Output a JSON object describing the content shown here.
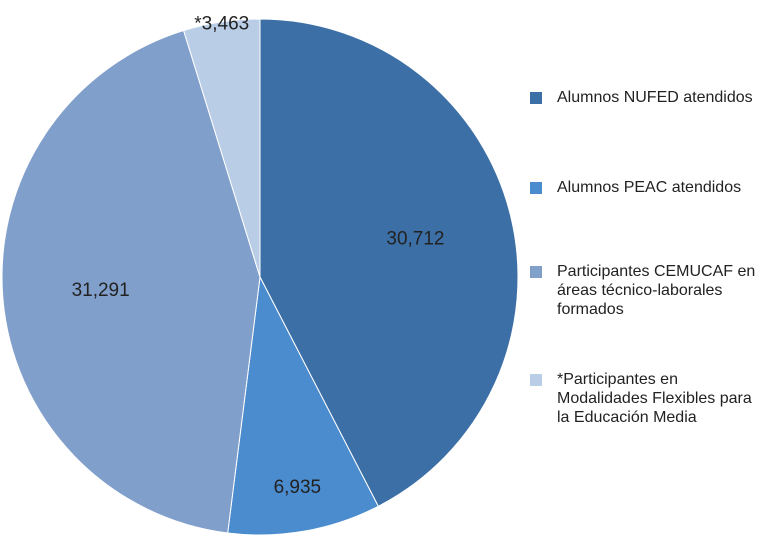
{
  "chart_data": {
    "type": "pie",
    "series": [
      {
        "name": "Alumnos NUFED atendidos",
        "color": "#3c6fa6"
      },
      {
        "name": "Alumnos PEAC atendidos",
        "color": "#4b8ccf"
      },
      {
        "name": "Participantes CEMUCAF en áreas técnico-laborales formados",
        "color": "#819fcb"
      },
      {
        "name": "*Participantes en Modalidades Flexibles para la Educación Media",
        "color": "#b9cde6"
      }
    ],
    "values": [
      30712,
      6935,
      31291,
      3463
    ],
    "value_labels": [
      "30,712",
      "6,935",
      "31,291",
      "*3,463"
    ],
    "legend": "right"
  }
}
